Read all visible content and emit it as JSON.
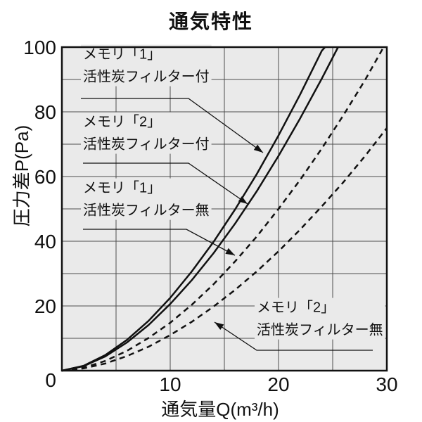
{
  "page": {
    "background": "#ffffff"
  },
  "chart_data": {
    "type": "line",
    "title": "通気特性",
    "xlabel": "通気量Q(m³/h)",
    "ylabel": "圧力差P(Pa)",
    "xlim": [
      0,
      30
    ],
    "ylim": [
      0,
      100
    ],
    "x_ticks": [
      0,
      10,
      20,
      30
    ],
    "y_ticks": [
      0,
      20,
      40,
      60,
      80,
      100
    ],
    "x_grid_step": 5,
    "y_grid_step": 10,
    "grid": "on",
    "legend_position": "annotated-on-plot",
    "series": [
      {
        "name": "メモリ「1」活性炭フィルター付",
        "line_style": "solid",
        "color": "#111111",
        "points": [
          [
            0,
            0
          ],
          [
            2,
            1.5
          ],
          [
            4,
            4.8
          ],
          [
            6,
            9.5
          ],
          [
            8,
            15.4
          ],
          [
            10,
            22.5
          ],
          [
            12,
            30.7
          ],
          [
            14,
            39.8
          ],
          [
            16,
            49.9
          ],
          [
            18,
            60.8
          ],
          [
            20,
            72.7
          ],
          [
            22,
            85.4
          ],
          [
            24,
            98.9
          ],
          [
            24.3,
            100
          ]
        ]
      },
      {
        "name": "メモリ「2」活性炭フィルター付",
        "line_style": "solid",
        "color": "#111111",
        "points": [
          [
            0,
            0
          ],
          [
            2,
            1.4
          ],
          [
            4,
            4.4
          ],
          [
            6,
            8.7
          ],
          [
            8,
            14.1
          ],
          [
            10,
            20.6
          ],
          [
            12,
            28.0
          ],
          [
            14,
            36.3
          ],
          [
            16,
            45.5
          ],
          [
            18,
            55.5
          ],
          [
            20,
            66.4
          ],
          [
            22,
            78.0
          ],
          [
            24,
            90.3
          ],
          [
            25.5,
            100
          ]
        ]
      },
      {
        "name": "メモリ「1」活性炭フィルター無",
        "line_style": "dashed",
        "color": "#111111",
        "points": [
          [
            0,
            0
          ],
          [
            2,
            0.9
          ],
          [
            4,
            3.0
          ],
          [
            6,
            6.1
          ],
          [
            8,
            10.1
          ],
          [
            10,
            14.8
          ],
          [
            12,
            20.4
          ],
          [
            14,
            26.7
          ],
          [
            16,
            33.8
          ],
          [
            18,
            41.5
          ],
          [
            20,
            50.0
          ],
          [
            22,
            59.0
          ],
          [
            24,
            68.7
          ],
          [
            26,
            79.0
          ],
          [
            28,
            89.9
          ],
          [
            29.7,
            100
          ]
        ]
      },
      {
        "name": "メモリ「2」活性炭フィルター無",
        "line_style": "dashed",
        "color": "#111111",
        "points": [
          [
            0,
            0
          ],
          [
            2,
            0.7
          ],
          [
            4,
            2.2
          ],
          [
            6,
            4.5
          ],
          [
            8,
            7.4
          ],
          [
            10,
            11.0
          ],
          [
            12,
            15.1
          ],
          [
            14,
            19.8
          ],
          [
            16,
            25.0
          ],
          [
            18,
            30.7
          ],
          [
            20,
            36.9
          ],
          [
            22,
            43.6
          ],
          [
            24,
            50.8
          ],
          [
            26,
            58.3
          ],
          [
            28,
            66.4
          ],
          [
            30,
            75.0
          ]
        ]
      }
    ]
  },
  "annotations": [
    {
      "line1": "メモリ「1」",
      "line2": "活性炭フィルター付",
      "target_series": 0
    },
    {
      "line1": "メモリ「2」",
      "line2": "活性炭フィルター付",
      "target_series": 1
    },
    {
      "line1": "メモリ「1」",
      "line2": "活性炭フィルター無",
      "target_series": 2
    },
    {
      "line1": "メモリ「2」",
      "line2": "活性炭フィルター無",
      "target_series": 3
    }
  ],
  "colors": {
    "plot_background": "#eaeaea",
    "grid": "#4d4d4d",
    "line": "#111111",
    "text": "#111111",
    "border": "#111111"
  }
}
